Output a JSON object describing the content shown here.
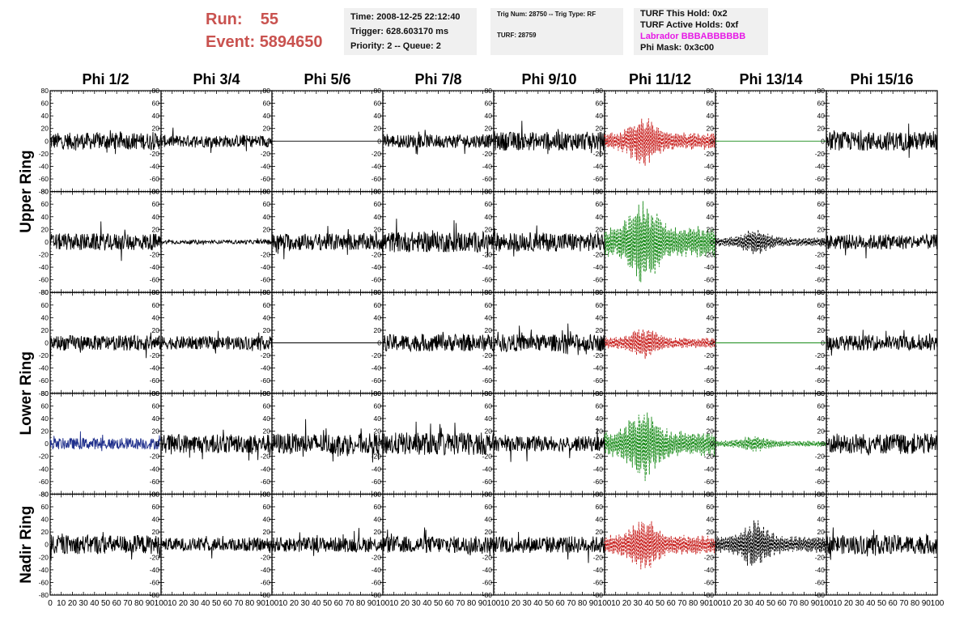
{
  "header": {
    "run_label": "Run:",
    "run_value": "55",
    "event_label": "Event:",
    "event_value": "5894650",
    "time": "Time: 2008-12-25 22:12:40",
    "trigger": "Trigger: 628.603170 ms",
    "priority": "Priority: 2 -- Queue: 2",
    "trig_num": "Trig Num: 28750 -- Trig Type: RF",
    "turf": "TURF: 28759",
    "turf_hold": "TURF This Hold: 0x2",
    "turf_active": "TURF Active Holds: 0xf",
    "labrador": "Labrador BBBABBBBBB",
    "phi_mask": "Phi Mask: 0x3c00"
  },
  "colors": {
    "header_red": "#c9524f",
    "labrador_magenta": "#e619e6",
    "trace_black": "#000000",
    "trace_red": "#c8201e",
    "trace_green": "#1a8c1a",
    "trace_blue": "#1f2f8c",
    "info_bg": "#f0f0f0"
  },
  "chart_data": {
    "type": "line",
    "columns": [
      "Phi 1/2",
      "Phi 3/4",
      "Phi 5/6",
      "Phi 7/8",
      "Phi 9/10",
      "Phi 11/12",
      "Phi 13/14",
      "Phi 15/16"
    ],
    "rings": [
      {
        "name": "Upper Ring",
        "rows": 2
      },
      {
        "name": "Lower Ring",
        "rows": 2
      },
      {
        "name": "Nadir Ring",
        "rows": 1
      }
    ],
    "ylim": [
      -80,
      80
    ],
    "yticks": [
      -80,
      -60,
      -40,
      -20,
      0,
      20,
      40,
      60,
      80
    ],
    "ytick_labels": [
      "-80",
      "-60",
      "-40",
      "-20",
      "0",
      "20",
      "40",
      "60",
      "80"
    ],
    "xlim": [
      0,
      100
    ],
    "xticks": [
      0,
      10,
      20,
      30,
      40,
      50,
      60,
      70,
      80,
      90,
      100
    ],
    "xtick_labels": [
      "0",
      "10",
      "20",
      "30",
      "40",
      "50",
      "60",
      "70",
      "80",
      "90",
      "100"
    ],
    "panels": [
      [
        {
          "color": "black",
          "style": "solid",
          "amplitude": 18,
          "profile": "noise"
        },
        {
          "color": "black",
          "style": "solid",
          "amplitude": 13,
          "profile": "noise"
        },
        {
          "color": "black",
          "style": "solid",
          "amplitude": 0,
          "profile": "flat"
        },
        {
          "color": "black",
          "style": "solid",
          "amplitude": 14,
          "profile": "noise"
        },
        {
          "color": "black",
          "style": "solid",
          "amplitude": 20,
          "profile": "noise"
        },
        {
          "color": "red",
          "style": "dashed",
          "amplitude": 40,
          "profile": "burst"
        },
        {
          "color": "green",
          "style": "solid",
          "amplitude": 0,
          "profile": "flat"
        },
        {
          "color": "black",
          "style": "solid",
          "amplitude": 20,
          "profile": "noise"
        }
      ],
      [
        {
          "color": "black",
          "style": "solid",
          "amplitude": 18,
          "profile": "noise"
        },
        {
          "color": "black",
          "style": "solid",
          "amplitude": 4,
          "profile": "noise"
        },
        {
          "color": "black",
          "style": "solid",
          "amplitude": 18,
          "profile": "noise"
        },
        {
          "color": "black",
          "style": "solid",
          "amplitude": 22,
          "profile": "noise"
        },
        {
          "color": "black",
          "style": "solid",
          "amplitude": 20,
          "profile": "noise"
        },
        {
          "color": "green",
          "style": "dashed",
          "amplitude": 75,
          "profile": "burst"
        },
        {
          "color": "black",
          "style": "dashed",
          "amplitude": 22,
          "profile": "burst"
        },
        {
          "color": "black",
          "style": "solid",
          "amplitude": 16,
          "profile": "noise"
        }
      ],
      [
        {
          "color": "black",
          "style": "solid",
          "amplitude": 16,
          "profile": "noise"
        },
        {
          "color": "black",
          "style": "solid",
          "amplitude": 14,
          "profile": "noise"
        },
        {
          "color": "black",
          "style": "solid",
          "amplitude": 0,
          "profile": "flat"
        },
        {
          "color": "black",
          "style": "solid",
          "amplitude": 18,
          "profile": "noise"
        },
        {
          "color": "black",
          "style": "solid",
          "amplitude": 18,
          "profile": "noise"
        },
        {
          "color": "red",
          "style": "dashed",
          "amplitude": 26,
          "profile": "burst"
        },
        {
          "color": "green",
          "style": "solid",
          "amplitude": 0,
          "profile": "flat"
        },
        {
          "color": "black",
          "style": "solid",
          "amplitude": 16,
          "profile": "noise"
        }
      ],
      [
        {
          "color": "blue",
          "style": "solid",
          "amplitude": 12,
          "profile": "noise"
        },
        {
          "color": "black",
          "style": "solid",
          "amplitude": 20,
          "profile": "noise"
        },
        {
          "color": "black",
          "style": "solid",
          "amplitude": 22,
          "profile": "noise"
        },
        {
          "color": "black",
          "style": "solid",
          "amplitude": 24,
          "profile": "noise"
        },
        {
          "color": "black",
          "style": "solid",
          "amplitude": 16,
          "profile": "noise"
        },
        {
          "color": "green",
          "style": "dashed",
          "amplitude": 60,
          "profile": "burst"
        },
        {
          "color": "green",
          "style": "dashed",
          "amplitude": 14,
          "profile": "burst"
        },
        {
          "color": "black",
          "style": "solid",
          "amplitude": 22,
          "profile": "noise"
        }
      ],
      [
        {
          "color": "black",
          "style": "solid",
          "amplitude": 20,
          "profile": "noise"
        },
        {
          "color": "black",
          "style": "solid",
          "amplitude": 14,
          "profile": "noise"
        },
        {
          "color": "black",
          "style": "solid",
          "amplitude": 16,
          "profile": "noise"
        },
        {
          "color": "black",
          "style": "solid",
          "amplitude": 18,
          "profile": "noise"
        },
        {
          "color": "black",
          "style": "solid",
          "amplitude": 18,
          "profile": "noise"
        },
        {
          "color": "red",
          "style": "dashed",
          "amplitude": 45,
          "profile": "burst"
        },
        {
          "color": "black",
          "style": "dashed",
          "amplitude": 40,
          "profile": "burst"
        },
        {
          "color": "black",
          "style": "solid",
          "amplitude": 20,
          "profile": "noise"
        }
      ]
    ]
  }
}
